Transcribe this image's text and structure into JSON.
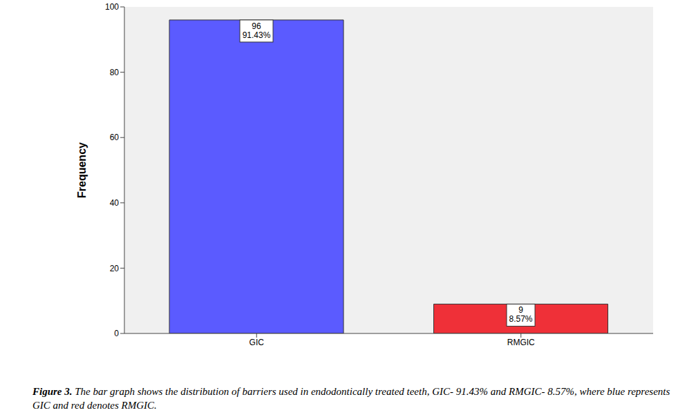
{
  "chart_data": {
    "type": "bar",
    "ylabel": "Frequency",
    "categories": [
      "GIC",
      "RMGIC"
    ],
    "values": [
      96,
      9
    ],
    "value_labels": [
      "96\n91.43%",
      "9\n8.57%"
    ],
    "data_labels": true,
    "colors": [
      "#5b5bff",
      "#ef3038"
    ],
    "ylim": [
      0,
      100
    ],
    "yticks": [
      0,
      20,
      40,
      60,
      80,
      100
    ],
    "grid": false,
    "caption": {
      "label": "Figure 3.",
      "text": " The bar graph shows the distribution of barriers used in endodontically treated teeth, GIC- 91.43% and RMGIC- 8.57%, where blue represents GIC and red denotes RMGIC."
    }
  }
}
